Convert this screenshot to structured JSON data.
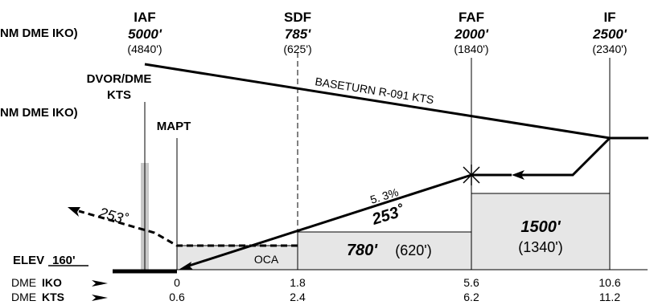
{
  "fixes": {
    "iaf": {
      "name": "IAF",
      "alt": "5000'",
      "sub": "(4840')"
    },
    "sdf": {
      "name": "SDF",
      "alt": "785'",
      "sub": "(625')"
    },
    "faf": {
      "name": "FAF",
      "alt": "2000'",
      "sub": "(1840')"
    },
    "if": {
      "name": "IF",
      "alt": "2500'",
      "sub": "(2340')"
    }
  },
  "left_headers": {
    "top": "NM DME IKO)",
    "mid": "NM DME IKO)"
  },
  "dvor": {
    "line1": "DVOR/DME",
    "line2": "KTS"
  },
  "mapt": "MAPT",
  "baseturn": "BASETURN R-091 KTS",
  "final": {
    "gradient": "5. 3%",
    "track": "253˚"
  },
  "missed_track": "253˚",
  "segments": {
    "oca": "OCA",
    "sdf_alt": "780'",
    "sdf_sub": "(620')",
    "faf_alt": "1500'",
    "faf_sub": "(1340')"
  },
  "elev": {
    "label": "ELEV",
    "value": "160'"
  },
  "dme_rows": [
    {
      "prefix": "DME",
      "station": "IKO",
      "values": [
        "0",
        "1.8",
        "5.6",
        "10.6"
      ]
    },
    {
      "prefix": "DME",
      "station": "KTS",
      "values": [
        "0.6",
        "2.4",
        "6.2",
        "11.2"
      ]
    }
  ],
  "colors": {
    "shade": "#e6e6e6",
    "line": "#000000",
    "beacon": "#c8c8c8"
  }
}
